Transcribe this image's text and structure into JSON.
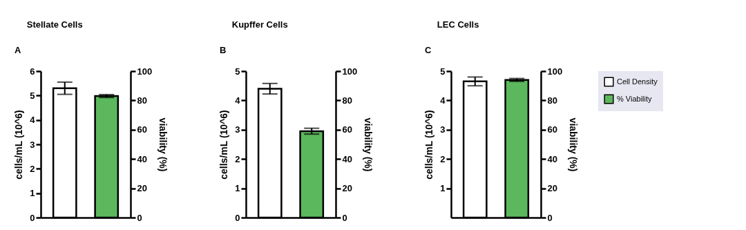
{
  "chart_data": [
    {
      "type": "bar",
      "title": "Stellate Cells",
      "annotations": [
        "A"
      ],
      "categories": [
        null,
        null
      ],
      "ylabel": "cells/mL (10^6)",
      "y2label": "viability (%)",
      "ylim": [
        0,
        6
      ],
      "yticks": [
        0,
        1,
        2,
        3,
        4,
        5,
        6
      ],
      "y2lim": [
        0,
        100
      ],
      "y2ticks": [
        0,
        20,
        40,
        60,
        80,
        100
      ],
      "grid": false,
      "series": [
        {
          "color": "#ffffff",
          "values": [
            5.3,
            null
          ],
          "errors": [
            0.25,
            null
          ],
          "axis": "y"
        },
        {
          "color": "#5cb85c",
          "values": [
            null,
            83
          ],
          "errors": [
            null,
            1
          ],
          "axis": "y2"
        }
      ]
    },
    {
      "type": "bar",
      "title": "Kupffer Cells",
      "annotations": [
        "B"
      ],
      "categories": [
        null,
        null
      ],
      "ylabel": "cells/mL (10^6)",
      "y2label": "viability (%)",
      "ylim": [
        0,
        5
      ],
      "yticks": [
        0,
        1,
        2,
        3,
        4,
        5
      ],
      "y2lim": [
        0,
        100
      ],
      "y2ticks": [
        0,
        20,
        40,
        60,
        80,
        100
      ],
      "grid": false,
      "series": [
        {
          "color": "#ffffff",
          "values": [
            4.4,
            null
          ],
          "errors": [
            0.18,
            null
          ],
          "axis": "y"
        },
        {
          "color": "#5cb85c",
          "values": [
            null,
            59
          ],
          "errors": [
            null,
            2
          ],
          "axis": "y2"
        }
      ]
    },
    {
      "type": "bar",
      "title": "LEC Cells",
      "annotations": [
        "C"
      ],
      "categories": [
        null,
        null
      ],
      "ylabel": "cells/mL (10^6)",
      "y2label": "viability (%)",
      "ylim": [
        0,
        5
      ],
      "yticks": [
        1,
        2,
        3,
        4,
        5
      ],
      "y2lim": [
        0,
        100
      ],
      "y2ticks": [
        0,
        20,
        40,
        60,
        80,
        100
      ],
      "grid": false,
      "legend": "top right",
      "series": [
        {
          "name": "Cell Density",
          "color": "#ffffff",
          "values": [
            4.65,
            null
          ],
          "errors": [
            0.15,
            null
          ],
          "axis": "y"
        },
        {
          "name": "% Viability",
          "color": "#5cb85c",
          "values": [
            null,
            94
          ],
          "errors": [
            null,
            1
          ],
          "axis": "y2"
        }
      ]
    }
  ]
}
